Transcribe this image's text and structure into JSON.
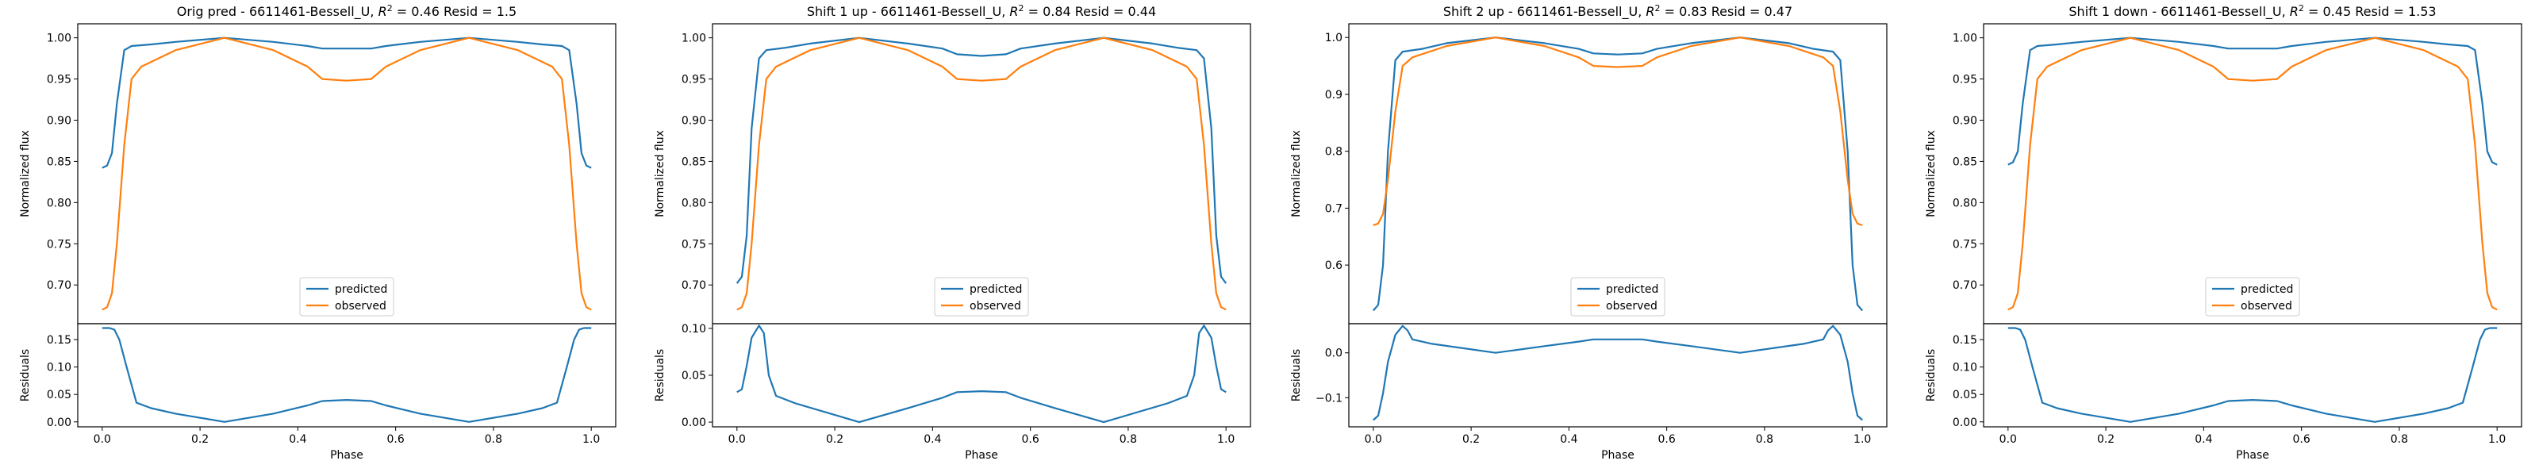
{
  "figure": {
    "colors": {
      "predicted": "#1f77b4",
      "observed": "#ff7f0e",
      "axis": "#000000",
      "background": "#ffffff"
    }
  },
  "chart_data": [
    {
      "type": "line",
      "title": "Orig pred - 6611461-Bessell_U, $R^2 = 0.46$ Resid = 1.5",
      "title_parts": {
        "prefix": "Orig pred - 6611461-Bessell_U, ",
        "r2_symbol": "R",
        "r2_exp": "2",
        "r2_value": " = 0.46",
        "suffix": " Resid = 1.5"
      },
      "xlabel": "Phase",
      "ylabel": "Normalized flux",
      "resid_ylabel": "Residuals",
      "xlim": [
        -0.05,
        1.05
      ],
      "ylim": [
        0.653,
        1.017
      ],
      "resid_ylim": [
        -0.009,
        0.179
      ],
      "xticks": [
        "0.0",
        "0.2",
        "0.4",
        "0.6",
        "0.8",
        "1.0"
      ],
      "yticks": [
        "0.70",
        "0.75",
        "0.80",
        "0.85",
        "0.90",
        "0.95",
        "1.00"
      ],
      "resid_yticks": [
        "0.00",
        "0.05",
        "0.10",
        "0.15"
      ],
      "legend": {
        "position": "lower center",
        "entries": [
          "predicted",
          "observed"
        ]
      },
      "series": [
        {
          "name": "predicted",
          "x": [
            0.0,
            0.01,
            0.02,
            0.03,
            0.045,
            0.06,
            0.1,
            0.15,
            0.25,
            0.35,
            0.42,
            0.45,
            0.5,
            0.55,
            0.58,
            0.65,
            0.75,
            0.85,
            0.9,
            0.94,
            0.955,
            0.97,
            0.98,
            0.99,
            1.0
          ],
          "y": [
            0.842,
            0.845,
            0.86,
            0.92,
            0.985,
            0.99,
            0.992,
            0.995,
            1.0,
            0.995,
            0.99,
            0.987,
            0.987,
            0.987,
            0.99,
            0.995,
            1.0,
            0.995,
            0.992,
            0.99,
            0.985,
            0.92,
            0.86,
            0.845,
            0.842
          ]
        },
        {
          "name": "observed",
          "x": [
            0.0,
            0.01,
            0.02,
            0.03,
            0.045,
            0.06,
            0.08,
            0.15,
            0.25,
            0.35,
            0.42,
            0.45,
            0.5,
            0.55,
            0.58,
            0.65,
            0.75,
            0.85,
            0.92,
            0.94,
            0.955,
            0.97,
            0.98,
            0.99,
            1.0
          ],
          "y": [
            0.67,
            0.673,
            0.69,
            0.75,
            0.87,
            0.95,
            0.965,
            0.985,
            1.0,
            0.985,
            0.965,
            0.95,
            0.948,
            0.95,
            0.965,
            0.985,
            1.0,
            0.985,
            0.965,
            0.95,
            0.87,
            0.75,
            0.69,
            0.673,
            0.67
          ]
        }
      ],
      "residuals": {
        "x": [
          0.0,
          0.015,
          0.025,
          0.035,
          0.05,
          0.07,
          0.1,
          0.15,
          0.25,
          0.35,
          0.42,
          0.45,
          0.5,
          0.55,
          0.58,
          0.65,
          0.75,
          0.85,
          0.9,
          0.93,
          0.95,
          0.965,
          0.975,
          0.985,
          1.0
        ],
        "y": [
          0.171,
          0.171,
          0.168,
          0.15,
          0.1,
          0.035,
          0.025,
          0.015,
          0.0,
          0.015,
          0.03,
          0.038,
          0.04,
          0.038,
          0.03,
          0.015,
          0.0,
          0.015,
          0.025,
          0.035,
          0.1,
          0.15,
          0.168,
          0.171,
          0.171
        ]
      }
    },
    {
      "type": "line",
      "title": "Shift 1 up - 6611461-Bessell_U, $R^2 = 0.84$ Resid = 0.44",
      "title_parts": {
        "prefix": "Shift 1 up - 6611461-Bessell_U, ",
        "r2_symbol": "R",
        "r2_exp": "2",
        "r2_value": " = 0.84",
        "suffix": " Resid = 0.44"
      },
      "xlabel": "Phase",
      "ylabel": "Normalized flux",
      "resid_ylabel": "Residuals",
      "xlim": [
        -0.05,
        1.05
      ],
      "ylim": [
        0.653,
        1.017
      ],
      "resid_ylim": [
        -0.005,
        0.105
      ],
      "xticks": [
        "0.0",
        "0.2",
        "0.4",
        "0.6",
        "0.8",
        "1.0"
      ],
      "yticks": [
        "0.70",
        "0.75",
        "0.80",
        "0.85",
        "0.90",
        "0.95",
        "1.00"
      ],
      "resid_yticks": [
        "0.00",
        "0.05",
        "0.10"
      ],
      "legend": {
        "position": "lower center",
        "entries": [
          "predicted",
          "observed"
        ]
      },
      "series": [
        {
          "name": "predicted",
          "x": [
            0.0,
            0.01,
            0.02,
            0.03,
            0.045,
            0.06,
            0.1,
            0.15,
            0.25,
            0.35,
            0.42,
            0.45,
            0.5,
            0.55,
            0.58,
            0.65,
            0.75,
            0.85,
            0.9,
            0.94,
            0.955,
            0.97,
            0.98,
            0.99,
            1.0
          ],
          "y": [
            0.702,
            0.71,
            0.76,
            0.89,
            0.975,
            0.985,
            0.988,
            0.993,
            1.0,
            0.993,
            0.987,
            0.98,
            0.978,
            0.98,
            0.987,
            0.993,
            1.0,
            0.993,
            0.988,
            0.985,
            0.975,
            0.89,
            0.76,
            0.71,
            0.702
          ]
        },
        {
          "name": "observed",
          "x": [
            0.0,
            0.01,
            0.02,
            0.03,
            0.045,
            0.06,
            0.08,
            0.15,
            0.25,
            0.35,
            0.42,
            0.45,
            0.5,
            0.55,
            0.58,
            0.65,
            0.75,
            0.85,
            0.92,
            0.94,
            0.955,
            0.97,
            0.98,
            0.99,
            1.0
          ],
          "y": [
            0.67,
            0.673,
            0.69,
            0.75,
            0.87,
            0.95,
            0.965,
            0.985,
            1.0,
            0.985,
            0.965,
            0.95,
            0.948,
            0.95,
            0.965,
            0.985,
            1.0,
            0.985,
            0.965,
            0.95,
            0.87,
            0.75,
            0.69,
            0.673,
            0.67
          ]
        }
      ],
      "residuals": {
        "x": [
          0.0,
          0.01,
          0.02,
          0.03,
          0.045,
          0.055,
          0.065,
          0.08,
          0.12,
          0.25,
          0.35,
          0.42,
          0.45,
          0.5,
          0.55,
          0.58,
          0.65,
          0.75,
          0.88,
          0.92,
          0.935,
          0.945,
          0.955,
          0.97,
          0.98,
          0.99,
          1.0
        ],
        "y": [
          0.032,
          0.035,
          0.06,
          0.09,
          0.103,
          0.095,
          0.05,
          0.028,
          0.02,
          0.0,
          0.015,
          0.026,
          0.032,
          0.033,
          0.032,
          0.026,
          0.015,
          0.0,
          0.02,
          0.028,
          0.05,
          0.095,
          0.103,
          0.09,
          0.06,
          0.035,
          0.032
        ]
      }
    },
    {
      "type": "line",
      "title": "Shift 2 up - 6611461-Bessell_U, $R^2 = 0.83$ Resid = 0.47",
      "title_parts": {
        "prefix": "Shift 2 up - 6611461-Bessell_U, ",
        "r2_symbol": "R",
        "r2_exp": "2",
        "r2_value": " = 0.83",
        "suffix": " Resid = 0.47"
      },
      "xlabel": "Phase",
      "ylabel": "Normalized flux",
      "resid_ylabel": "Residuals",
      "xlim": [
        -0.05,
        1.05
      ],
      "ylim": [
        0.497,
        1.024
      ],
      "resid_ylim": [
        -0.165,
        0.065
      ],
      "xticks": [
        "0.0",
        "0.2",
        "0.4",
        "0.6",
        "0.8",
        "1.0"
      ],
      "yticks": [
        "0.6",
        "0.7",
        "0.8",
        "0.9",
        "1.0"
      ],
      "resid_yticks": [
        "−0.1",
        "0.0"
      ],
      "legend": {
        "position": "lower center",
        "entries": [
          "predicted",
          "observed"
        ]
      },
      "series": [
        {
          "name": "predicted",
          "x": [
            0.0,
            0.01,
            0.02,
            0.03,
            0.045,
            0.06,
            0.1,
            0.15,
            0.25,
            0.35,
            0.42,
            0.45,
            0.5,
            0.55,
            0.58,
            0.65,
            0.75,
            0.85,
            0.9,
            0.94,
            0.955,
            0.97,
            0.98,
            0.99,
            1.0
          ],
          "y": [
            0.52,
            0.53,
            0.6,
            0.8,
            0.96,
            0.975,
            0.98,
            0.99,
            1.0,
            0.99,
            0.98,
            0.972,
            0.97,
            0.972,
            0.98,
            0.99,
            1.0,
            0.99,
            0.98,
            0.975,
            0.96,
            0.8,
            0.6,
            0.53,
            0.52
          ]
        },
        {
          "name": "observed",
          "x": [
            0.0,
            0.01,
            0.02,
            0.03,
            0.045,
            0.06,
            0.08,
            0.15,
            0.25,
            0.35,
            0.42,
            0.45,
            0.5,
            0.55,
            0.58,
            0.65,
            0.75,
            0.85,
            0.92,
            0.94,
            0.955,
            0.97,
            0.98,
            0.99,
            1.0
          ],
          "y": [
            0.67,
            0.673,
            0.69,
            0.75,
            0.87,
            0.95,
            0.965,
            0.985,
            1.0,
            0.985,
            0.965,
            0.95,
            0.948,
            0.95,
            0.965,
            0.985,
            1.0,
            0.985,
            0.965,
            0.95,
            0.87,
            0.75,
            0.69,
            0.673,
            0.67
          ]
        }
      ],
      "residuals": {
        "x": [
          0.0,
          0.01,
          0.02,
          0.03,
          0.045,
          0.06,
          0.07,
          0.08,
          0.12,
          0.25,
          0.35,
          0.42,
          0.45,
          0.5,
          0.55,
          0.58,
          0.65,
          0.75,
          0.88,
          0.92,
          0.93,
          0.94,
          0.955,
          0.97,
          0.98,
          0.99,
          1.0
        ],
        "y": [
          -0.15,
          -0.14,
          -0.09,
          -0.02,
          0.04,
          0.06,
          0.05,
          0.03,
          0.02,
          0.0,
          0.015,
          0.025,
          0.03,
          0.03,
          0.03,
          0.025,
          0.015,
          0.0,
          0.02,
          0.03,
          0.05,
          0.06,
          0.04,
          -0.02,
          -0.09,
          -0.14,
          -0.15
        ]
      }
    },
    {
      "type": "line",
      "title": "Shift 1 down - 6611461-Bessell_U, $R^2 = 0.45$ Resid = 1.53",
      "title_parts": {
        "prefix": "Shift 1 down - 6611461-Bessell_U, ",
        "r2_symbol": "R",
        "r2_exp": "2",
        "r2_value": " = 0.45",
        "suffix": " Resid = 1.53"
      },
      "xlabel": "Phase",
      "ylabel": "Normalized flux",
      "resid_ylabel": "Residuals",
      "xlim": [
        -0.05,
        1.05
      ],
      "ylim": [
        0.653,
        1.017
      ],
      "resid_ylim": [
        -0.009,
        0.179
      ],
      "xticks": [
        "0.0",
        "0.2",
        "0.4",
        "0.6",
        "0.8",
        "1.0"
      ],
      "yticks": [
        "0.70",
        "0.75",
        "0.80",
        "0.85",
        "0.90",
        "0.95",
        "1.00"
      ],
      "resid_yticks": [
        "0.00",
        "0.05",
        "0.10",
        "0.15"
      ],
      "legend": {
        "position": "lower center",
        "entries": [
          "predicted",
          "observed"
        ]
      },
      "series": [
        {
          "name": "predicted",
          "x": [
            0.0,
            0.01,
            0.02,
            0.03,
            0.045,
            0.06,
            0.1,
            0.15,
            0.25,
            0.35,
            0.42,
            0.45,
            0.5,
            0.55,
            0.58,
            0.65,
            0.75,
            0.85,
            0.9,
            0.94,
            0.955,
            0.97,
            0.98,
            0.99,
            1.0
          ],
          "y": [
            0.846,
            0.849,
            0.862,
            0.92,
            0.985,
            0.99,
            0.992,
            0.995,
            1.0,
            0.995,
            0.99,
            0.987,
            0.987,
            0.987,
            0.99,
            0.995,
            1.0,
            0.995,
            0.992,
            0.99,
            0.985,
            0.92,
            0.862,
            0.849,
            0.846
          ]
        },
        {
          "name": "observed",
          "x": [
            0.0,
            0.01,
            0.02,
            0.03,
            0.045,
            0.06,
            0.08,
            0.15,
            0.25,
            0.35,
            0.42,
            0.45,
            0.5,
            0.55,
            0.58,
            0.65,
            0.75,
            0.85,
            0.92,
            0.94,
            0.955,
            0.97,
            0.98,
            0.99,
            1.0
          ],
          "y": [
            0.67,
            0.673,
            0.69,
            0.75,
            0.87,
            0.95,
            0.965,
            0.985,
            1.0,
            0.985,
            0.965,
            0.95,
            0.948,
            0.95,
            0.965,
            0.985,
            1.0,
            0.985,
            0.965,
            0.95,
            0.87,
            0.75,
            0.69,
            0.673,
            0.67
          ]
        }
      ],
      "residuals": {
        "x": [
          0.0,
          0.015,
          0.025,
          0.035,
          0.05,
          0.07,
          0.1,
          0.15,
          0.25,
          0.35,
          0.42,
          0.45,
          0.5,
          0.55,
          0.58,
          0.65,
          0.75,
          0.85,
          0.9,
          0.93,
          0.95,
          0.965,
          0.975,
          0.985,
          1.0
        ],
        "y": [
          0.171,
          0.171,
          0.168,
          0.15,
          0.1,
          0.035,
          0.025,
          0.015,
          0.0,
          0.015,
          0.03,
          0.038,
          0.04,
          0.038,
          0.03,
          0.015,
          0.0,
          0.015,
          0.025,
          0.035,
          0.1,
          0.15,
          0.168,
          0.171,
          0.171
        ]
      }
    }
  ]
}
